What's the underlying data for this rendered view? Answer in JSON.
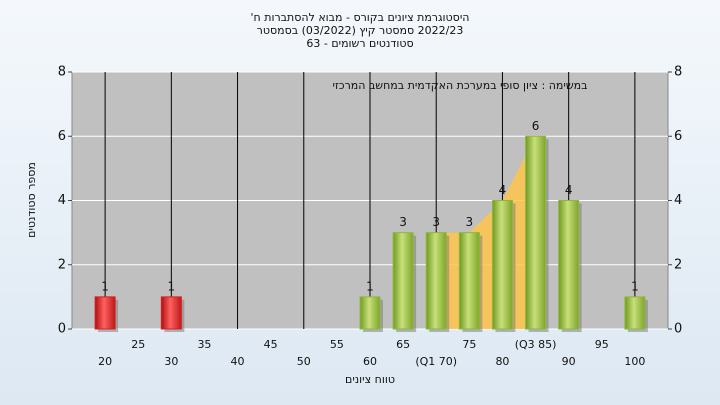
{
  "chart_data": {
    "type": "bar",
    "title": "היסטוגרמת ציונים בקורס - מבוא להסתברות ח'",
    "subtitle": "2022/23 סמסטר קיץ (03/2022) בסמסטר",
    "subtitle2": "סטודנטים רשומים - 63",
    "annotation": "במשימה : ציון סופי במערכת האקדמית במחשב המרכזי",
    "x_label": "טווח ציונים",
    "y_label": "מספר סטודנטים",
    "x": [
      20,
      25,
      30,
      35,
      40,
      45,
      50,
      55,
      60,
      65,
      70,
      75,
      80,
      85,
      90,
      95,
      100
    ],
    "values": [
      1,
      0,
      1,
      0,
      0,
      0,
      0,
      0,
      1,
      3,
      3,
      3,
      4,
      6,
      4,
      0,
      1
    ],
    "colors": [
      "#d42020",
      "#d42020",
      "#d42020",
      "#d42020",
      "#d42020",
      "#d42020",
      "#d42020",
      "#d42020",
      "#8fb83a",
      "#8fb83a",
      "#8fb83a",
      "#8fb83a",
      "#8fb83a",
      "#8fb83a",
      "#8fb83a",
      "#8fb83a",
      "#8fb83a"
    ],
    "highlight_color": "#ffc44a",
    "xlim": [
      15,
      105
    ],
    "xticks": [
      20,
      25,
      30,
      35,
      40,
      45,
      50,
      55,
      60,
      65,
      {
        "value": 70,
        "label": "(Q1 70)"
      },
      75,
      80,
      {
        "value": 85,
        "label": "(Q3 85)"
      },
      90,
      95,
      100
    ],
    "ylim": [
      0,
      8
    ],
    "yticks": [
      0,
      2,
      4,
      6,
      8
    ],
    "y2lim": [
      0,
      8
    ],
    "y2ticks": [
      0,
      2,
      4,
      6,
      8
    ],
    "grid": true
  }
}
